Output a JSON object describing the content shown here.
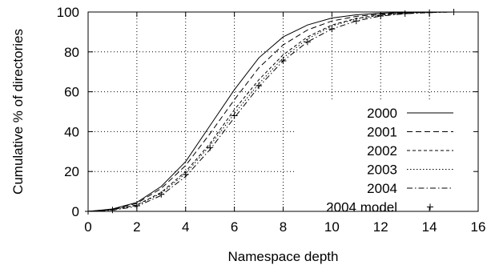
{
  "chart_data": {
    "type": "line",
    "title": "",
    "xlabel": "Namespace depth",
    "ylabel": "Cumulative % of directories",
    "xlim": [
      0,
      16
    ],
    "ylim": [
      0,
      100
    ],
    "xticks": [
      0,
      2,
      4,
      6,
      8,
      10,
      12,
      14,
      16
    ],
    "yticks": [
      0,
      20,
      40,
      60,
      80,
      100
    ],
    "grid": true,
    "legend_position": "bottom-right",
    "series": [
      {
        "name": "2000",
        "style": "solid",
        "x": [
          0,
          1,
          2,
          3,
          4,
          5,
          6,
          7,
          8,
          9,
          10,
          11,
          12,
          13,
          14,
          15
        ],
        "y": [
          0,
          1.2,
          4.5,
          12.5,
          25,
          43,
          61,
          77,
          87.5,
          93.5,
          97,
          98.6,
          99.4,
          99.8,
          100,
          100
        ]
      },
      {
        "name": "2001",
        "style": "dashed",
        "x": [
          0,
          1,
          2,
          3,
          4,
          5,
          6,
          7,
          8,
          9,
          10,
          11,
          12,
          13,
          14,
          15
        ],
        "y": [
          0,
          1,
          4,
          11.5,
          23,
          39,
          56,
          72,
          83.5,
          91,
          95.5,
          97.8,
          99,
          99.6,
          99.9,
          100
        ]
      },
      {
        "name": "2002",
        "style": "short-dashed",
        "x": [
          0,
          1,
          2,
          3,
          4,
          5,
          6,
          7,
          8,
          9,
          10,
          11,
          12,
          13,
          14,
          15
        ],
        "y": [
          0,
          0.9,
          3.2,
          9.5,
          20,
          34,
          51,
          66,
          78.5,
          87.5,
          93.5,
          96.8,
          98.6,
          99.4,
          99.8,
          100
        ]
      },
      {
        "name": "2003",
        "style": "dotted",
        "x": [
          0,
          1,
          2,
          3,
          4,
          5,
          6,
          7,
          8,
          9,
          10,
          11,
          12,
          13,
          14,
          15
        ],
        "y": [
          0,
          0.8,
          3,
          9,
          19,
          33,
          49,
          64,
          77,
          86.5,
          93,
          96.5,
          98.4,
          99.3,
          99.8,
          100
        ]
      },
      {
        "name": "2004",
        "style": "dash-dot",
        "x": [
          0,
          1,
          2,
          3,
          4,
          5,
          6,
          7,
          8,
          9,
          10,
          11,
          12,
          13,
          14,
          15
        ],
        "y": [
          0,
          0.6,
          2.5,
          8,
          17.5,
          31,
          47,
          62.5,
          75.5,
          85,
          91.5,
          95.5,
          98,
          99.1,
          99.7,
          100
        ]
      },
      {
        "name": "2004 model",
        "style": "plus-markers",
        "x": [
          0,
          1,
          2,
          3,
          4,
          5,
          6,
          7,
          8,
          9,
          10,
          11,
          12,
          13,
          14,
          15
        ],
        "y": [
          0,
          0.7,
          2.8,
          8.5,
          18.5,
          32,
          48,
          63,
          75.5,
          85,
          91.5,
          95.5,
          98,
          99.2,
          99.7,
          100
        ]
      }
    ]
  }
}
